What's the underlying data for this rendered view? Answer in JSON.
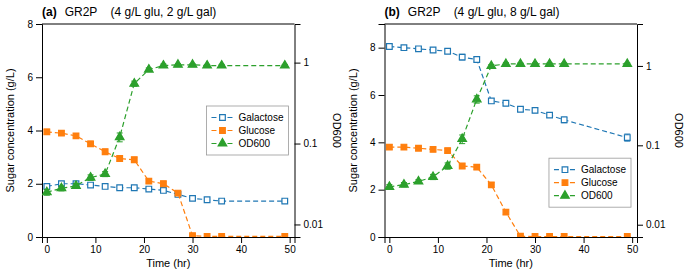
{
  "chart_data": [
    {
      "type": "line",
      "title": "(a)",
      "subtitle": "GR2P    (4 g/L glu, 2 g/L gal)",
      "xlabel": "Time (hr)",
      "ylabel": "Sugar concentration (g/L)",
      "y2label": "OD600",
      "x": [
        0,
        3,
        6,
        9,
        12,
        15,
        18,
        21,
        24,
        27,
        30,
        33,
        36,
        49
      ],
      "xlim": [
        -1,
        51
      ],
      "xticks": [
        0,
        10,
        20,
        30,
        40,
        50
      ],
      "ylim": [
        0,
        8
      ],
      "yticks": [
        0,
        2,
        4,
        6,
        8
      ],
      "y2lim": [
        0.007,
        3.0
      ],
      "y2ticks": [
        0.01,
        0.1,
        1
      ],
      "log": "y2",
      "grid": false,
      "legend": "center right",
      "series": [
        {
          "name": "Galactose",
          "marker": "square-open",
          "line_style": "dashed",
          "values": [
            1.9,
            2.0,
            2.0,
            1.95,
            1.9,
            1.85,
            1.85,
            1.8,
            1.75,
            1.6,
            1.45,
            1.4,
            1.35,
            1.35
          ],
          "errors": [
            0.08,
            0.06,
            0.06,
            0.06,
            0.06,
            0.06,
            0.06,
            0.06,
            0.07,
            0.06,
            0.06,
            0.06,
            0.06,
            0.06
          ]
        },
        {
          "name": "Glucose",
          "marker": "square",
          "line_style": "dashed",
          "values": [
            3.95,
            3.9,
            3.8,
            3.5,
            3.2,
            2.95,
            2.9,
            2.1,
            2.0,
            1.65,
            0.05,
            0.02,
            0.02,
            0.02
          ],
          "errors": [
            0.1,
            0.08,
            0.08,
            0.1,
            0.1,
            0.1,
            0.1,
            0.08,
            0.1,
            0.08,
            0.02,
            0.02,
            0.02,
            0.02
          ]
        },
        {
          "name": "OD600",
          "marker": "triangle",
          "line_style": "dashed",
          "axis": "y2",
          "values": [
            0.025,
            0.028,
            0.03,
            0.038,
            0.042,
            0.12,
            0.55,
            0.82,
            0.92,
            0.94,
            0.94,
            0.92,
            0.92,
            0.92
          ],
          "errors": [
            0.002,
            0.002,
            0.002,
            0.003,
            0.003,
            0.015,
            0.04,
            0.04,
            0.04,
            0.03,
            0.03,
            0.03,
            0.03,
            0.03
          ]
        }
      ]
    },
    {
      "type": "line",
      "title": "(b)",
      "subtitle": "GR2P    (4 g/L glu, 8 g/L gal)",
      "xlabel": "Time (hr)",
      "ylabel": "Sugar concentration (g/L)",
      "y2label": "OD600",
      "x": [
        0,
        3,
        6,
        9,
        12,
        15,
        18,
        21,
        24,
        27,
        30,
        33,
        36,
        49
      ],
      "xlim": [
        -1,
        51
      ],
      "xticks": [
        0,
        10,
        20,
        30,
        40,
        50
      ],
      "ylim": [
        0,
        9
      ],
      "yticks": [
        0,
        2,
        4,
        6,
        8
      ],
      "y2lim": [
        0.007,
        3.375
      ],
      "y2ticks": [
        0.01,
        0.1,
        1
      ],
      "log": "y2",
      "grid": false,
      "legend": "lower right",
      "series": [
        {
          "name": "Galactose",
          "marker": "square-open",
          "line_style": "dashed",
          "values": [
            8.05,
            8.0,
            7.95,
            7.9,
            7.85,
            7.6,
            7.5,
            5.75,
            5.65,
            5.4,
            5.35,
            5.15,
            4.95,
            4.2
          ],
          "errors": [
            0.1,
            0.08,
            0.08,
            0.08,
            0.1,
            0.12,
            0.1,
            0.1,
            0.1,
            0.1,
            0.1,
            0.1,
            0.12,
            0.15
          ]
        },
        {
          "name": "Glucose",
          "marker": "square",
          "line_style": "dashed",
          "values": [
            3.8,
            3.8,
            3.75,
            3.7,
            3.65,
            3.0,
            2.95,
            2.2,
            1.05,
            0.03,
            0.02,
            0.02,
            0.02,
            0.02
          ],
          "errors": [
            0.1,
            0.08,
            0.08,
            0.08,
            0.1,
            0.1,
            0.1,
            0.1,
            0.1,
            0.02,
            0.02,
            0.02,
            0.02,
            0.02
          ]
        },
        {
          "name": "OD600",
          "marker": "triangle",
          "line_style": "dashed",
          "axis": "y2",
          "values": [
            0.03,
            0.032,
            0.035,
            0.04,
            0.055,
            0.12,
            0.38,
            1.0,
            1.06,
            1.06,
            1.06,
            1.06,
            1.06,
            1.06
          ],
          "errors": [
            0.002,
            0.002,
            0.002,
            0.003,
            0.005,
            0.015,
            0.04,
            0.04,
            0.04,
            0.03,
            0.03,
            0.03,
            0.03,
            0.03
          ]
        }
      ]
    }
  ]
}
